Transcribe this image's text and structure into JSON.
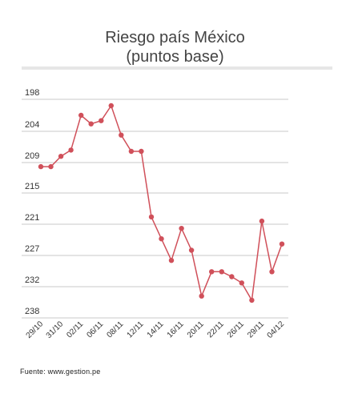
{
  "chart_data": {
    "type": "line",
    "title": "Riesgo país México",
    "subtitle": "(puntos base)",
    "xlabel": "",
    "ylabel": "",
    "y_ticks": [
      198,
      204,
      209,
      215,
      221,
      227,
      232,
      238
    ],
    "ylim": [
      198,
      238
    ],
    "x_tick_labels": [
      "29/10",
      "31/10",
      "02/11",
      "06/11",
      "08/11",
      "12/11",
      "14/11",
      "16/11",
      "20/11",
      "22/11",
      "26/11",
      "29/11",
      "04/12"
    ],
    "values": [
      209.8,
      209.8,
      208,
      207,
      201,
      202.6,
      202,
      199.2,
      204.6,
      207.2,
      207.2,
      219.6,
      223.8,
      227.8,
      221.8,
      226,
      233.8,
      229.6,
      229.6,
      230.4,
      231.4,
      234.6,
      220.4,
      229.6,
      224.8
    ],
    "series": [
      {
        "color": "#d0505a"
      }
    ],
    "grid": true,
    "legend": "none"
  },
  "source": "Fuente: www.gestion.pe"
}
